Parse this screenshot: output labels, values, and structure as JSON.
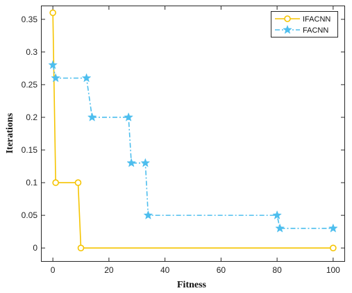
{
  "chart_data": {
    "type": "line",
    "xlabel": "Fitness",
    "ylabel": "Iterations",
    "xlim": [
      -4,
      104
    ],
    "ylim": [
      -0.02,
      0.37
    ],
    "xticks": [
      0,
      20,
      40,
      60,
      80,
      100
    ],
    "xtick_labels": [
      "0",
      "20",
      "40",
      "60",
      "80",
      "100"
    ],
    "yticks": [
      0,
      0.05,
      0.1,
      0.15,
      0.2,
      0.25,
      0.3,
      0.35
    ],
    "ytick_labels": [
      "0",
      "0.05",
      "0.1",
      "0.15",
      "0.2",
      "0.25",
      "0.3",
      "0.35"
    ],
    "grid": false,
    "legend_position": "top-right",
    "step": "post",
    "series": [
      {
        "name": "IFACNN",
        "color": "#F5C400",
        "marker": "circle",
        "line_style": "solid",
        "x": [
          0,
          1,
          9,
          10,
          100
        ],
        "y": [
          0.36,
          0.1,
          0.1,
          0,
          0
        ]
      },
      {
        "name": "FACNN",
        "color": "#4DBEEE",
        "marker": "star",
        "line_style": "dash-dot",
        "x": [
          0,
          1,
          12,
          14,
          27,
          28,
          33,
          34,
          80,
          81,
          100
        ],
        "y": [
          0.28,
          0.26,
          0.26,
          0.2,
          0.2,
          0.13,
          0.13,
          0.05,
          0.05,
          0.03,
          0.03
        ]
      }
    ]
  }
}
